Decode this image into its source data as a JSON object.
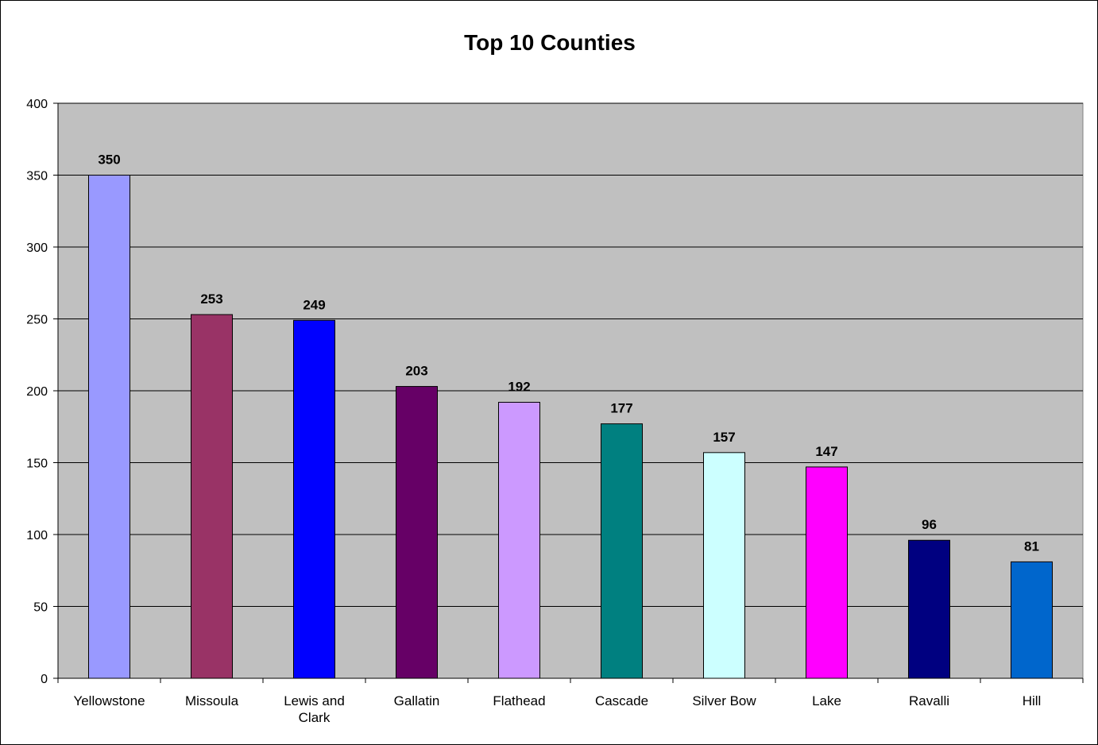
{
  "chart_data": {
    "type": "bar",
    "title": "Top 10 Counties",
    "xlabel": "",
    "ylabel": "",
    "categories": [
      "Yellowstone",
      "Missoula",
      "Lewis and Clark",
      "Gallatin",
      "Flathead",
      "Cascade",
      "Silver Bow",
      "Lake",
      "Ravalli",
      "Hill"
    ],
    "category_lines": [
      [
        "Yellowstone"
      ],
      [
        "Missoula"
      ],
      [
        "Lewis and",
        "Clark"
      ],
      [
        "Gallatin"
      ],
      [
        "Flathead"
      ],
      [
        "Cascade"
      ],
      [
        "Silver Bow"
      ],
      [
        "Lake"
      ],
      [
        "Ravalli"
      ],
      [
        "Hill"
      ]
    ],
    "values": [
      350,
      253,
      249,
      203,
      192,
      177,
      157,
      147,
      96,
      81
    ],
    "bar_colors": [
      "#9999FF",
      "#993366",
      "#0000FF",
      "#660066",
      "#CC99FF",
      "#008080",
      "#CCFFFF",
      "#FF00FF",
      "#000080",
      "#0066CC"
    ],
    "plot_background": "#C0C0C0",
    "ylim": [
      0,
      400
    ],
    "yticks": [
      0,
      50,
      100,
      150,
      200,
      250,
      300,
      350,
      400
    ],
    "grid": true,
    "legend": "none"
  }
}
